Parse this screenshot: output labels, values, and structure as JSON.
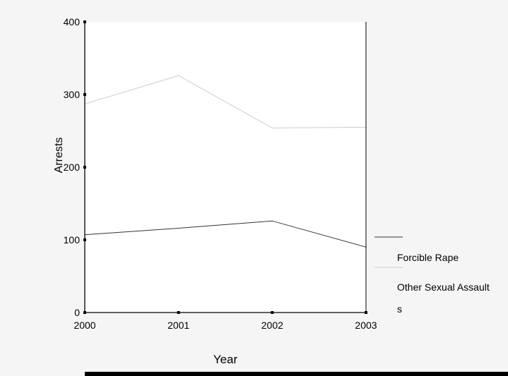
{
  "chart_data": {
    "type": "line",
    "title": "",
    "xlabel": "Year",
    "ylabel": "Arrests",
    "x": [
      "2000",
      "2001",
      "2002",
      "2003"
    ],
    "yticks": [
      0,
      100,
      200,
      300,
      400
    ],
    "ylim": [
      0,
      400
    ],
    "grid": false,
    "legend_position": "right",
    "series": [
      {
        "name": "Forcible Rape",
        "values": [
          107,
          116,
          126,
          90
        ],
        "color": "#333333"
      },
      {
        "name": "Other Sexual Assault s",
        "values": [
          287,
          326,
          254,
          255
        ],
        "color": "#cccccc"
      }
    ],
    "legend_lines": [
      "Forcible Rape",
      "Other Sexual Assault",
      "s"
    ]
  }
}
